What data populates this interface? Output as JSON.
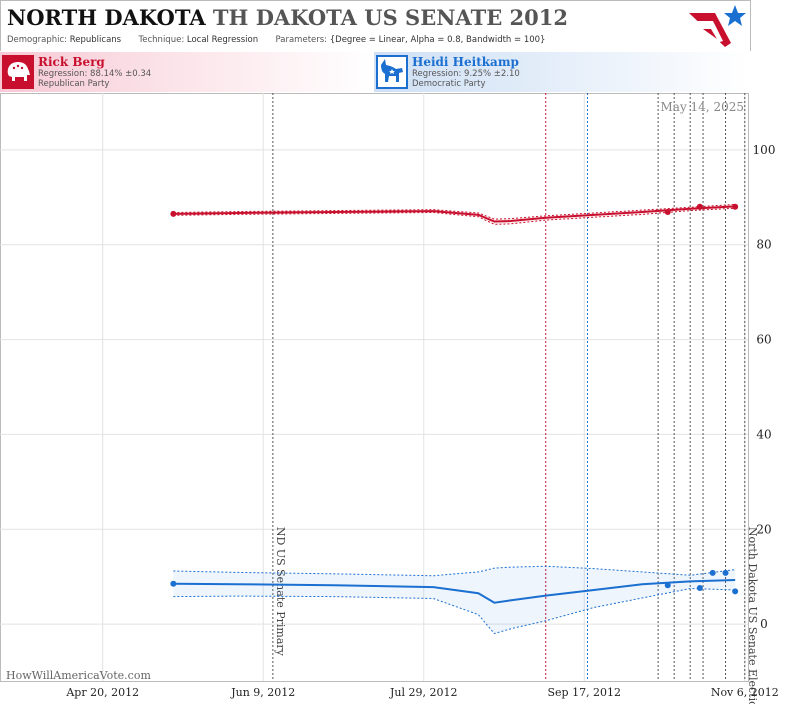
{
  "header": {
    "title_state": "NORTH DAKOTA",
    "title_race": "TH DAKOTA US SENATE 2012",
    "demographic_key": "Demographic:",
    "demographic_value": "Republicans",
    "technique_key": "Technique:",
    "technique_value": "Local Regression",
    "parameters_key": "Parameters:",
    "parameters_value": "{Degree = Linear, Alpha = 0.8, Bandwidth = 100}",
    "logo_icon": "stars-and-stripes-logo-icon"
  },
  "candidates": [
    {
      "name": "Rick Berg",
      "regression": "Regression: 88.14% ±0.34",
      "party": "Republican Party",
      "icon": "elephant-icon",
      "color": "#c8102e"
    },
    {
      "name": "Heidi Heitkamp",
      "regression": "Regression: 9.25% ±2.10",
      "party": "Democratic Party",
      "icon": "donkey-icon",
      "color": "#1a6fd1"
    }
  ],
  "chart_data": {
    "type": "line",
    "date_label": "May 14, 2025",
    "watermark": "HowWillAmericaVote.com",
    "x_ticks": [
      "Apr 20, 2012",
      "Jun 9, 2012",
      "Jul 29, 2012",
      "Sep 17, 2012",
      "Nov 6, 2012"
    ],
    "x_tick_dates": [
      "2012-04-20",
      "2012-06-09",
      "2012-07-29",
      "2012-09-17",
      "2012-11-06"
    ],
    "xlim": [
      "2012-03-19",
      "2012-11-07"
    ],
    "y_ticks": [
      0,
      20,
      40,
      60,
      80,
      100
    ],
    "ylim": [
      -12,
      112
    ],
    "grid": true,
    "events": [
      {
        "date": "2012-06-12",
        "label": "ND US Senate Primary"
      },
      {
        "date": "2012-11-06",
        "label": "North Dakota US Senate Election"
      }
    ],
    "poll_lines_red": [
      "2012-09-05"
    ],
    "poll_lines_blue": [
      "2012-09-18"
    ],
    "poll_lines_dark": [
      "2012-10-10",
      "2012-10-15",
      "2012-10-20",
      "2012-10-24",
      "2012-10-31"
    ],
    "series": [
      {
        "name": "Rick Berg",
        "color": "#c8102e",
        "x": [
          "2012-05-12",
          "2012-06-01",
          "2012-07-01",
          "2012-08-01",
          "2012-08-15",
          "2012-08-20",
          "2012-08-25",
          "2012-09-05",
          "2012-09-20",
          "2012-10-05",
          "2012-10-20",
          "2012-11-03"
        ],
        "y": [
          86.5,
          86.7,
          86.9,
          87.1,
          86.3,
          84.9,
          85.0,
          85.7,
          86.3,
          86.9,
          87.6,
          88.1
        ],
        "upper": [
          86.8,
          87.0,
          87.2,
          87.4,
          86.7,
          85.4,
          85.5,
          86.1,
          86.7,
          87.3,
          87.9,
          88.5
        ],
        "lower": [
          86.2,
          86.4,
          86.6,
          86.8,
          85.9,
          84.3,
          84.4,
          85.2,
          85.8,
          86.4,
          87.2,
          87.7
        ],
        "points_x": [
          "2012-05-12",
          "2012-10-13",
          "2012-10-23",
          "2012-11-03"
        ],
        "points_y": [
          86.5,
          86.9,
          88.0,
          88.0
        ]
      },
      {
        "name": "Heidi Heitkamp",
        "color": "#1a6fd1",
        "x": [
          "2012-05-12",
          "2012-06-01",
          "2012-07-01",
          "2012-08-01",
          "2012-08-15",
          "2012-08-20",
          "2012-08-25",
          "2012-09-05",
          "2012-09-20",
          "2012-10-05",
          "2012-10-20",
          "2012-11-03"
        ],
        "y": [
          8.5,
          8.4,
          8.2,
          7.8,
          6.5,
          4.5,
          5.0,
          6.0,
          7.2,
          8.4,
          9.0,
          9.3
        ],
        "upper": [
          11.2,
          10.9,
          10.6,
          10.2,
          11.0,
          11.8,
          12.0,
          12.2,
          11.7,
          11.0,
          10.3,
          11.5
        ],
        "lower": [
          5.8,
          5.9,
          5.8,
          5.4,
          2.0,
          -2.0,
          -1.0,
          0.7,
          3.5,
          5.5,
          7.5,
          7.2
        ],
        "points_x": [
          "2012-05-12",
          "2012-10-13",
          "2012-10-23",
          "2012-10-27",
          "2012-10-31",
          "2012-11-03"
        ],
        "points_y": [
          8.5,
          8.2,
          7.6,
          10.8,
          10.8,
          6.9
        ]
      }
    ]
  }
}
